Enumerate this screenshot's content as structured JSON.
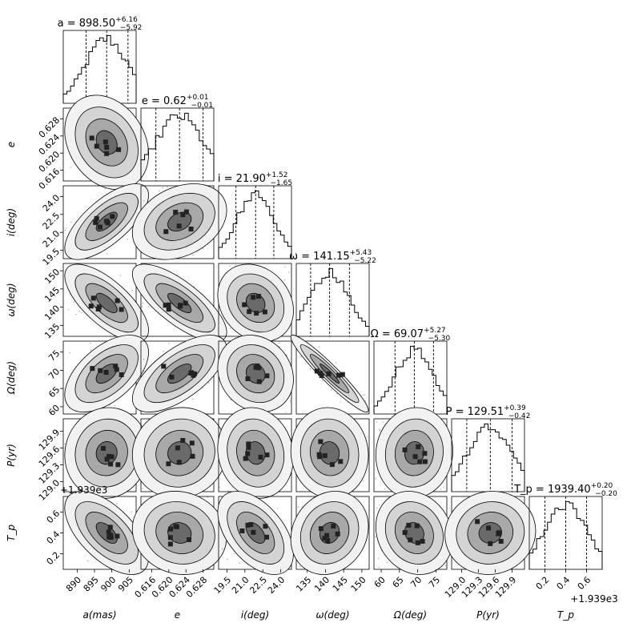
{
  "chart_data": {
    "type": "corner",
    "parameters": [
      {
        "key": "a",
        "axis_label": "a(mas)",
        "row_label": "",
        "title": "a = 898.50",
        "sup": "+6.16",
        "sub": "−5.92",
        "median": 898.5,
        "lo": 892.58,
        "hi": 904.66,
        "range": [
          886,
          907
        ],
        "ticks": [
          890,
          895,
          900,
          905
        ],
        "tick_labels": [
          "890",
          "895",
          "900",
          "905"
        ]
      },
      {
        "key": "e",
        "axis_label": "e",
        "row_label": "e",
        "title": "e = 0.62",
        "sup": "+0.01",
        "sub": "−0.01",
        "median": 0.6225,
        "lo": 0.617,
        "hi": 0.628,
        "range": [
          0.6135,
          0.6305
        ],
        "ticks": [
          0.616,
          0.62,
          0.624,
          0.628
        ],
        "tick_labels": [
          "0.616",
          "0.620",
          "0.624",
          "0.628"
        ]
      },
      {
        "key": "i",
        "axis_label": "i(deg)",
        "row_label": "i(deg)",
        "title": "i = 21.90",
        "sup": "+1.52",
        "sub": "−1.65",
        "median": 21.9,
        "lo": 20.25,
        "hi": 23.42,
        "range": [
          18.8,
          24.9
        ],
        "ticks": [
          19.5,
          21.0,
          22.5,
          24.0
        ],
        "tick_labels": [
          "19.5",
          "21.0",
          "22.5",
          "24.0"
        ]
      },
      {
        "key": "w",
        "axis_label": "ω(deg)",
        "row_label": "ω(deg)",
        "title": "ω = 141.15",
        "sup": "+5.43",
        "sub": "−5.22",
        "median": 141.15,
        "lo": 135.93,
        "hi": 146.58,
        "range": [
          132,
          152
        ],
        "ticks": [
          135,
          140,
          145,
          150
        ],
        "tick_labels": [
          "135",
          "140",
          "145",
          "150"
        ]
      },
      {
        "key": "O",
        "axis_label": "Ω(deg)",
        "row_label": "Ω(deg)",
        "title": "Ω = 69.07",
        "sup": "+5.27",
        "sub": "−5.30",
        "median": 69.07,
        "lo": 63.77,
        "hi": 74.34,
        "range": [
          58,
          78
        ],
        "ticks": [
          60,
          65,
          70,
          75
        ],
        "tick_labels": [
          "60",
          "65",
          "70",
          "75"
        ]
      },
      {
        "key": "P",
        "axis_label": "P(yr)",
        "row_label": "P(yr)",
        "title": "P = 129.51",
        "sup": "+0.39",
        "sub": "−0.42",
        "median": 129.51,
        "lo": 129.09,
        "hi": 129.9,
        "range": [
          128.82,
          130.12
        ],
        "ticks": [
          129.0,
          129.3,
          129.6,
          129.9
        ],
        "tick_labels": [
          "129.0",
          "129.3",
          "129.6",
          "129.9"
        ]
      },
      {
        "key": "Tp",
        "axis_label": "T_p",
        "row_label": "T_p",
        "title": "T_p = 1939.40",
        "sup": "+0.20",
        "sub": "−0.20",
        "median": 0.4,
        "lo": 0.2,
        "hi": 0.6,
        "range": [
          0.05,
          0.75
        ],
        "ticks": [
          0.2,
          0.4,
          0.6
        ],
        "tick_labels": [
          "0.2",
          "0.4",
          "0.6"
        ]
      }
    ],
    "offset_text_x": "+1.939e3",
    "offset_text_y": "+1.939e3",
    "correlations": [
      [
        0
      ],
      [
        -0.25,
        0
      ],
      [
        0.7,
        0.3,
        0
      ],
      [
        -0.7,
        -0.75,
        -0.2,
        0
      ],
      [
        0.55,
        0.65,
        -0.15,
        -0.95,
        0
      ],
      [
        0.05,
        0.05,
        -0.1,
        -0.05,
        0.05,
        0
      ],
      [
        -0.6,
        -0.1,
        -0.5,
        0.15,
        -0.15,
        0.05,
        0
      ]
    ],
    "grid": false,
    "line_color": "#000000"
  }
}
